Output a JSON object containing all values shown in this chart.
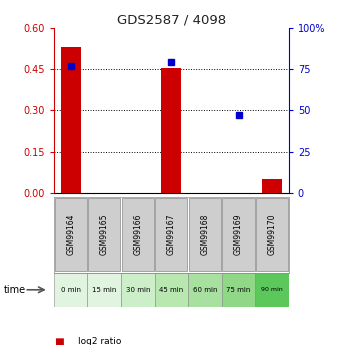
{
  "title": "GDS2587 / 4098",
  "samples": [
    "GSM99164",
    "GSM99165",
    "GSM99166",
    "GSM99167",
    "GSM99168",
    "GSM99169",
    "GSM99170"
  ],
  "time_labels": [
    "0 min",
    "15 min",
    "30 min",
    "45 min",
    "60 min",
    "75 min",
    "90 min"
  ],
  "log2_ratio": [
    0.53,
    0.0,
    0.0,
    0.455,
    0.0,
    0.0,
    0.05
  ],
  "percentile_rank": [
    77.0,
    null,
    null,
    79.0,
    null,
    47.0,
    null
  ],
  "left_yticks": [
    0,
    0.15,
    0.3,
    0.45,
    0.6
  ],
  "left_ylim": [
    0,
    0.6
  ],
  "right_yticks": [
    0,
    25,
    50,
    75,
    100
  ],
  "right_ylim": [
    0,
    100
  ],
  "bar_color": "#cc0000",
  "dot_color": "#0000cc",
  "title_color": "#222222",
  "left_axis_color": "#cc0000",
  "right_axis_color": "#0000cc",
  "grid_color": "#000000",
  "sample_bg_color": "#cecece",
  "time_bg_colors": [
    "#e0f4e0",
    "#e0f4e0",
    "#cceec8",
    "#b8e8b0",
    "#a8e0a0",
    "#90d888",
    "#5cc85c"
  ],
  "legend_log2_color": "#cc0000",
  "legend_pct_color": "#0000cc",
  "fig_width": 3.48,
  "fig_height": 3.45,
  "dpi": 100
}
